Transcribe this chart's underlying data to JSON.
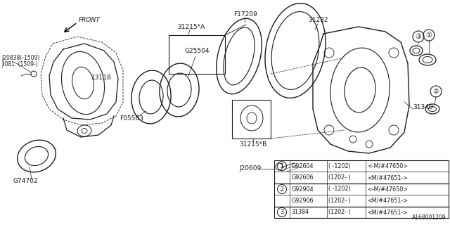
{
  "bg_color": "#ffffff",
  "line_color": "#1a1a1a",
  "diagram_id": "A168001209",
  "font_size": 6.5,
  "font_size_small": 5.5,
  "font_size_table": 5.8,
  "table": {
    "rows": [
      [
        "1",
        "G92604",
        "( -1202)",
        "<-M/#47650>"
      ],
      [
        "",
        "G92606",
        "(1202- )",
        "<M/#47651->"
      ],
      [
        "2",
        "G92904",
        "( -1202)",
        "<-M/#47650>"
      ],
      [
        "",
        "G92906",
        "(1202- )",
        "<M/#47651->"
      ],
      [
        "3",
        "31384",
        "(1202- )",
        "<M/#47651->"
      ]
    ]
  }
}
